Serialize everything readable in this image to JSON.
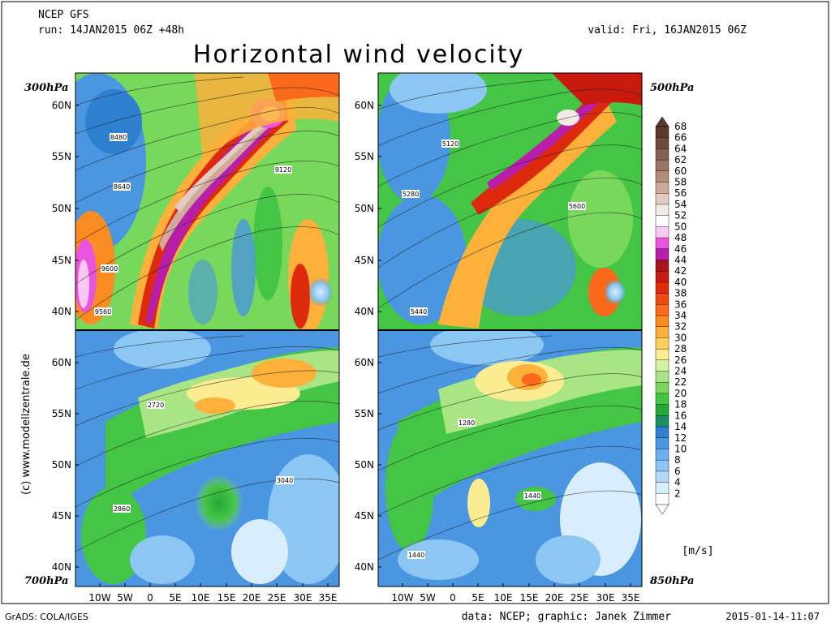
{
  "header": {
    "source": "NCEP GFS",
    "run": "run: 14JAN2015 06Z +48h",
    "valid": "valid: Fri, 16JAN2015 06Z",
    "title": "Horizontal wind velocity"
  },
  "panels": [
    {
      "id": "p300",
      "level": "300hPa",
      "contours": [
        {
          "text": "8480"
        },
        {
          "text": "8640"
        },
        {
          "text": "9120"
        },
        {
          "text": "9600"
        },
        {
          "text": "9560"
        }
      ]
    },
    {
      "id": "p500",
      "level": "500hPa",
      "contours": [
        {
          "text": "5120"
        },
        {
          "text": "5280"
        },
        {
          "text": "5600"
        },
        {
          "text": "5440"
        }
      ]
    },
    {
      "id": "p700",
      "level": "700hPa",
      "contours": [
        {
          "text": "2720"
        },
        {
          "text": "3040"
        },
        {
          "text": "2860"
        }
      ]
    },
    {
      "id": "p850",
      "level": "850hPa",
      "contours": [
        {
          "text": "1280"
        },
        {
          "text": "1440"
        },
        {
          "text": "1440"
        }
      ]
    }
  ],
  "axes": {
    "lat_top": [
      "60N",
      "55N",
      "50N",
      "45N",
      "40N"
    ],
    "lat_bottom": [
      "60N",
      "55N",
      "50N",
      "45N",
      "40N"
    ],
    "lon": [
      "10W",
      "5W",
      "0",
      "5E",
      "10E",
      "15E",
      "20E",
      "25E",
      "30E",
      "35E"
    ]
  },
  "colorbar": {
    "unit": "[m/s]",
    "labels": [
      "68",
      "66",
      "64",
      "62",
      "60",
      "58",
      "56",
      "54",
      "52",
      "50",
      "48",
      "46",
      "44",
      "42",
      "40",
      "38",
      "36",
      "34",
      "32",
      "30",
      "28",
      "26",
      "24",
      "22",
      "20",
      "18",
      "16",
      "14",
      "12",
      "10",
      "8",
      "6",
      "4",
      "2"
    ],
    "colors": [
      "#5a3a2e",
      "#6e4a3c",
      "#85604f",
      "#9c7463",
      "#b58b7a",
      "#cfa99b",
      "#e4ccc2",
      "#f4eae5",
      "#ffffff",
      "#f7c8f2",
      "#ea55e0",
      "#b81fa8",
      "#a8141e",
      "#c81a0f",
      "#de2a0c",
      "#ef4a10",
      "#fa6a1a",
      "#fb8c22",
      "#fdb03a",
      "#ffd25c",
      "#fbec92",
      "#d6f0a3",
      "#a9e584",
      "#77d85c",
      "#45c545",
      "#24a83a",
      "#1d8f62",
      "#2f80d0",
      "#4a96e0",
      "#6ab0ec",
      "#8cc6f2",
      "#b2daf8",
      "#d9eefc",
      "#ffffff"
    ]
  },
  "footer": {
    "left": "GrADS: COLA/IGES",
    "credit": "data: NCEP; graphic: Janek Zimmer",
    "timestamp": "2015-01-14-11:07"
  },
  "watermark": "(c) www.modellzentrale.de"
}
